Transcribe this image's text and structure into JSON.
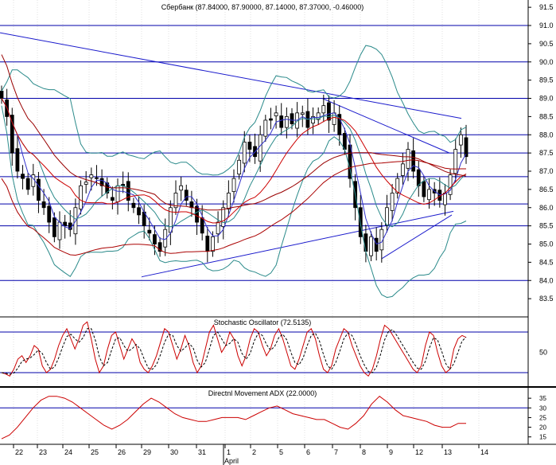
{
  "chart_data": [
    {
      "type": "candlestick",
      "title": "Сбербанк (87.84000, 87.90000, 87.14000, 87.37000, -0.46000)",
      "ylim": [
        83.0,
        91.7
      ],
      "yticks": [
        "83.5",
        "84.0",
        "84.5",
        "85.0",
        "85.5",
        "86.0",
        "86.5",
        "87.0",
        "87.5",
        "88.0",
        "88.5",
        "89.0",
        "89.5",
        "90.0",
        "90.5",
        "91.0",
        "91.5"
      ],
      "horizontal_levels": [
        84.0,
        85.5,
        86.1,
        86.85,
        87.5,
        88.0,
        89.0,
        90.0,
        91.0
      ],
      "trendlines": [
        {
          "x1": 0,
          "y1": 90.8,
          "x2": 580,
          "y2": 88.45
        },
        {
          "x1": 178,
          "y1": 84.1,
          "x2": 570,
          "y2": 85.9
        },
        {
          "x1": 405,
          "y1": 89.0,
          "x2": 565,
          "y2": 87.5
        },
        {
          "x1": 480,
          "y1": 84.6,
          "x2": 568,
          "y2": 85.8
        }
      ],
      "close_series": [
        89.0,
        88.5,
        87.5,
        87.0,
        86.8,
        86.5,
        86.9,
        86.2,
        86.0,
        85.6,
        85.2,
        85.6,
        85.5,
        85.4,
        86.0,
        86.6,
        86.7,
        86.9,
        86.8,
        86.6,
        86.4,
        86.2,
        86.6,
        86.6,
        86.2,
        86.0,
        85.8,
        85.5,
        85.3,
        85.0,
        84.8,
        85.4,
        86.0,
        86.4,
        86.6,
        86.2,
        86.0,
        85.6,
        85.3,
        84.8,
        85.2,
        85.6,
        86.0,
        86.4,
        86.8,
        87.3,
        87.8,
        87.6,
        87.4,
        88.0,
        88.4,
        88.4,
        88.6,
        88.2,
        88.5,
        88.3,
        88.6,
        88.6,
        88.2,
        88.5,
        88.6,
        88.8,
        88.4,
        88.6,
        88.0,
        87.6,
        86.8,
        86.0,
        85.2,
        84.8,
        85.2,
        84.8,
        85.4,
        86.0,
        86.4,
        86.8,
        87.2,
        87.6,
        87.0,
        86.6,
        86.3,
        86.5,
        86.4,
        86.2,
        86.4,
        86.9,
        87.6,
        88.0,
        87.4
      ],
      "x_labels": [
        "22",
        "23",
        "24",
        "25",
        "26",
        "29",
        "30",
        "31",
        "1",
        "2",
        "5",
        "6",
        "7",
        "8",
        "9",
        "12",
        "13",
        "14"
      ],
      "month_label": "April"
    },
    {
      "type": "line",
      "title": "Stochastic Oscillator (72.5135)",
      "ylim": [
        0,
        100
      ],
      "yticks": [
        "50"
      ],
      "levels": [
        80,
        20
      ],
      "k_values": [
        20,
        18,
        15,
        25,
        40,
        45,
        35,
        45,
        60,
        55,
        30,
        20,
        25,
        40,
        60,
        75,
        85,
        70,
        55,
        70,
        90,
        95,
        70,
        40,
        20,
        30,
        55,
        75,
        80,
        60,
        40,
        55,
        70,
        60,
        35,
        25,
        20,
        30,
        45,
        65,
        85,
        80,
        60,
        40,
        55,
        75,
        60,
        35,
        20,
        30,
        55,
        80,
        90,
        70,
        50,
        60,
        80,
        70,
        45,
        30,
        45,
        70,
        85,
        80,
        60,
        45,
        55,
        75,
        85,
        70,
        50,
        30,
        25,
        40,
        60,
        80,
        85,
        70,
        45,
        25,
        20,
        30,
        55,
        70,
        85,
        80,
        60,
        45,
        30,
        20,
        15,
        25,
        45,
        70,
        90,
        85,
        75,
        65,
        55,
        45,
        35,
        25,
        20,
        30,
        60,
        80,
        75,
        50,
        30,
        20,
        25,
        55,
        70,
        75,
        72
      ]
    },
    {
      "type": "line",
      "title": "Directnl Movement ADX (22.0000)",
      "ylim": [
        12,
        40
      ],
      "yticks": [
        "15",
        "20",
        "25",
        "30",
        "35"
      ],
      "levels": [
        30
      ],
      "values": [
        14,
        16,
        20,
        25,
        30,
        34,
        36,
        36,
        35,
        33,
        30,
        27,
        24,
        21,
        19,
        21,
        24,
        28,
        32,
        35,
        33,
        30,
        27,
        25,
        24,
        23,
        23,
        24,
        25,
        25,
        25,
        24,
        26,
        28,
        30,
        31,
        29,
        27,
        26,
        25,
        24,
        24,
        22,
        20,
        19,
        22,
        26,
        32,
        36,
        33,
        29,
        26,
        25,
        24,
        23,
        21,
        20,
        20,
        22,
        22
      ]
    }
  ]
}
